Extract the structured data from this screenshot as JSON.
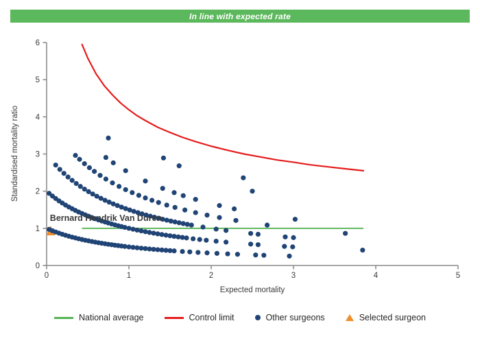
{
  "header": {
    "title": "In line with expected rate",
    "bg_color": "#5cb85c",
    "text_color": "#ffffff"
  },
  "chart_data": {
    "type": "scatter",
    "title": "",
    "xlabel": "Expected mortality",
    "ylabel": "Standardised mortality ratio",
    "xlim": [
      0,
      5
    ],
    "ylim": [
      0,
      6
    ],
    "x_ticks": [
      0,
      1,
      2,
      3,
      4,
      5
    ],
    "y_ticks": [
      0,
      1,
      2,
      3,
      4,
      5,
      6
    ],
    "grid": false,
    "legend_position": "bottom",
    "annotation": {
      "text": "Bernard Hendrik Van Duren",
      "x": 0.04,
      "y": 1.2
    },
    "series": [
      {
        "name": "National average",
        "type": "line",
        "color": "#54b354",
        "points": [
          [
            0.43,
            1.0
          ],
          [
            3.85,
            1.0
          ]
        ]
      },
      {
        "name": "Control limit",
        "type": "line",
        "color": "#e51b1b",
        "points": [
          [
            0.43,
            5.95
          ],
          [
            0.5,
            5.58
          ],
          [
            0.6,
            5.16
          ],
          [
            0.7,
            4.84
          ],
          [
            0.8,
            4.59
          ],
          [
            0.9,
            4.37
          ],
          [
            1.0,
            4.19
          ],
          [
            1.1,
            4.03
          ],
          [
            1.2,
            3.9
          ],
          [
            1.35,
            3.72
          ],
          [
            1.5,
            3.58
          ],
          [
            1.65,
            3.45
          ],
          [
            1.8,
            3.34
          ],
          [
            2.0,
            3.21
          ],
          [
            2.2,
            3.1
          ],
          [
            2.4,
            3.0
          ],
          [
            2.6,
            2.92
          ],
          [
            2.8,
            2.84
          ],
          [
            3.0,
            2.78
          ],
          [
            3.2,
            2.71
          ],
          [
            3.4,
            2.66
          ],
          [
            3.6,
            2.61
          ],
          [
            3.85,
            2.55
          ]
        ]
      },
      {
        "name": "Other surgeons",
        "type": "scatter",
        "color": "#204475",
        "points": [
          [
            0.03,
            0.971
          ],
          [
            0.07,
            0.935
          ],
          [
            0.11,
            0.901
          ],
          [
            0.15,
            0.87
          ],
          [
            0.19,
            0.84
          ],
          [
            0.23,
            0.813
          ],
          [
            0.27,
            0.787
          ],
          [
            0.31,
            0.763
          ],
          [
            0.35,
            0.741
          ],
          [
            0.39,
            0.719
          ],
          [
            0.43,
            0.699
          ],
          [
            0.47,
            0.68
          ],
          [
            0.51,
            0.662
          ],
          [
            0.55,
            0.645
          ],
          [
            0.59,
            0.629
          ],
          [
            0.63,
            0.613
          ],
          [
            0.67,
            0.599
          ],
          [
            0.71,
            0.585
          ],
          [
            0.75,
            0.571
          ],
          [
            0.79,
            0.559
          ],
          [
            0.83,
            0.546
          ],
          [
            0.87,
            0.535
          ],
          [
            0.91,
            0.524
          ],
          [
            0.95,
            0.513
          ],
          [
            1.0,
            0.5
          ],
          [
            1.05,
            0.488
          ],
          [
            1.1,
            0.476
          ],
          [
            1.15,
            0.465
          ],
          [
            1.2,
            0.455
          ],
          [
            1.25,
            0.444
          ],
          [
            1.3,
            0.435
          ],
          [
            1.35,
            0.426
          ],
          [
            1.4,
            0.417
          ],
          [
            1.45,
            0.408
          ],
          [
            1.5,
            0.4
          ],
          [
            1.55,
            0.392
          ],
          [
            1.65,
            0.377
          ],
          [
            1.74,
            0.365
          ],
          [
            1.84,
            0.352
          ],
          [
            1.95,
            0.339
          ],
          [
            2.07,
            0.326
          ],
          [
            2.2,
            0.313
          ],
          [
            2.32,
            0.301
          ],
          [
            2.54,
            0.282
          ],
          [
            2.64,
            0.275
          ],
          [
            2.95,
            0.253
          ],
          [
            0.03,
            1.942
          ],
          [
            0.07,
            1.869
          ],
          [
            0.11,
            1.802
          ],
          [
            0.15,
            1.739
          ],
          [
            0.19,
            1.681
          ],
          [
            0.23,
            1.626
          ],
          [
            0.27,
            1.575
          ],
          [
            0.31,
            1.527
          ],
          [
            0.35,
            1.481
          ],
          [
            0.39,
            1.439
          ],
          [
            0.43,
            1.399
          ],
          [
            0.47,
            1.361
          ],
          [
            0.51,
            1.325
          ],
          [
            0.55,
            1.29
          ],
          [
            0.59,
            1.258
          ],
          [
            0.63,
            1.227
          ],
          [
            0.67,
            1.198
          ],
          [
            0.71,
            1.17
          ],
          [
            0.75,
            1.143
          ],
          [
            0.79,
            1.117
          ],
          [
            0.83,
            1.093
          ],
          [
            0.87,
            1.07
          ],
          [
            0.91,
            1.047
          ],
          [
            0.95,
            1.026
          ],
          [
            1.0,
            1.0
          ],
          [
            1.05,
            0.976
          ],
          [
            1.1,
            0.952
          ],
          [
            1.15,
            0.93
          ],
          [
            1.2,
            0.909
          ],
          [
            1.25,
            0.889
          ],
          [
            1.3,
            0.87
          ],
          [
            1.35,
            0.851
          ],
          [
            1.4,
            0.833
          ],
          [
            1.45,
            0.816
          ],
          [
            1.5,
            0.8
          ],
          [
            1.55,
            0.784
          ],
          [
            1.6,
            0.769
          ],
          [
            1.65,
            0.755
          ],
          [
            1.7,
            0.741
          ],
          [
            1.78,
            0.719
          ],
          [
            1.86,
            0.699
          ],
          [
            1.94,
            0.68
          ],
          [
            2.06,
            0.654
          ],
          [
            2.18,
            0.629
          ],
          [
            2.48,
            0.575
          ],
          [
            2.57,
            0.56
          ],
          [
            2.89,
            0.514
          ],
          [
            2.99,
            0.501
          ],
          [
            3.84,
            0.413
          ],
          [
            0.11,
            2.703
          ],
          [
            0.16,
            2.586
          ],
          [
            0.21,
            2.479
          ],
          [
            0.26,
            2.381
          ],
          [
            0.31,
            2.29
          ],
          [
            0.36,
            2.206
          ],
          [
            0.41,
            2.128
          ],
          [
            0.46,
            2.055
          ],
          [
            0.51,
            1.987
          ],
          [
            0.56,
            1.923
          ],
          [
            0.61,
            1.863
          ],
          [
            0.66,
            1.807
          ],
          [
            0.71,
            1.754
          ],
          [
            0.76,
            1.705
          ],
          [
            0.81,
            1.657
          ],
          [
            0.86,
            1.613
          ],
          [
            0.91,
            1.571
          ],
          [
            0.96,
            1.531
          ],
          [
            1.01,
            1.493
          ],
          [
            1.06,
            1.456
          ],
          [
            1.11,
            1.422
          ],
          [
            1.16,
            1.389
          ],
          [
            1.21,
            1.357
          ],
          [
            1.26,
            1.327
          ],
          [
            1.31,
            1.299
          ],
          [
            1.36,
            1.271
          ],
          [
            1.41,
            1.245
          ],
          [
            1.46,
            1.22
          ],
          [
            1.51,
            1.195
          ],
          [
            1.56,
            1.172
          ],
          [
            1.61,
            1.149
          ],
          [
            1.66,
            1.128
          ],
          [
            1.71,
            1.107
          ],
          [
            1.76,
            1.087
          ],
          [
            1.9,
            1.034
          ],
          [
            2.06,
            0.98
          ],
          [
            2.18,
            0.943
          ],
          [
            2.48,
            0.862
          ],
          [
            2.57,
            0.84
          ],
          [
            2.9,
            0.769
          ],
          [
            3.0,
            0.75
          ],
          [
            0.35,
            2.963
          ],
          [
            0.4,
            2.857
          ],
          [
            0.46,
            2.74
          ],
          [
            0.52,
            2.632
          ],
          [
            0.58,
            2.532
          ],
          [
            0.65,
            2.424
          ],
          [
            0.72,
            2.326
          ],
          [
            0.8,
            2.222
          ],
          [
            0.88,
            2.128
          ],
          [
            0.96,
            2.041
          ],
          [
            1.04,
            1.961
          ],
          [
            1.12,
            1.887
          ],
          [
            1.2,
            1.818
          ],
          [
            1.28,
            1.754
          ],
          [
            1.36,
            1.695
          ],
          [
            1.46,
            1.626
          ],
          [
            1.56,
            1.563
          ],
          [
            1.68,
            1.493
          ],
          [
            1.81,
            1.423
          ],
          [
            1.95,
            1.356
          ],
          [
            2.1,
            1.29
          ],
          [
            2.3,
            1.212
          ],
          [
            2.68,
            1.087
          ],
          [
            3.63,
            0.864
          ],
          [
            0.72,
            2.907
          ],
          [
            0.81,
            2.762
          ],
          [
            0.96,
            2.551
          ],
          [
            1.2,
            2.273
          ],
          [
            1.41,
            2.075
          ],
          [
            1.55,
            1.961
          ],
          [
            1.66,
            1.88
          ],
          [
            1.81,
            1.779
          ],
          [
            2.1,
            1.613
          ],
          [
            2.28,
            1.524
          ],
          [
            3.02,
            1.244
          ],
          [
            0.75,
            3.429
          ],
          [
            1.42,
            2.893
          ],
          [
            1.61,
            2.682
          ],
          [
            2.5,
            2.0
          ],
          [
            2.39,
            2.36
          ]
        ]
      },
      {
        "name": "Selected surgeon",
        "type": "triangle",
        "color": "#ef8e2a",
        "label": "Bernard Hendrik Van Duren",
        "points": [
          [
            0.05,
            0.93
          ]
        ]
      }
    ]
  },
  "legend": {
    "items": [
      {
        "label": "National average",
        "type": "line",
        "color": "#54b354"
      },
      {
        "label": "Control limit",
        "type": "line",
        "color": "#e51b1b"
      },
      {
        "label": "Other surgeons",
        "type": "dot",
        "color": "#204475"
      },
      {
        "label": "Selected surgeon",
        "type": "triangle",
        "color": "#ef8e2a"
      }
    ]
  }
}
